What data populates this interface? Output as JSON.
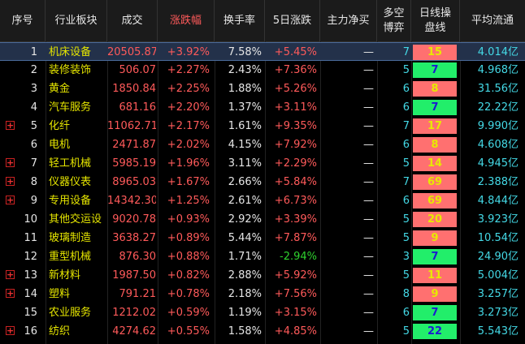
{
  "colors": {
    "red": "#ff5a5a",
    "yellow": "#e5e500",
    "green": "#2ed12e",
    "cyan": "#44d9e6",
    "white": "#e6e6e6",
    "badge_red": "#ff7070",
    "badge_green": "#22ee6a",
    "badge_red_text": "#e8e800",
    "badge_green_text": "#1b1bd0"
  },
  "header": {
    "seq": "序号",
    "industry": "行业板块",
    "price": "成交",
    "change": "涨跌幅",
    "turnover": "换手率",
    "change5d": "5日涨跌",
    "netflow": "主力净买",
    "bullbear_l1": "多空",
    "bullbear_l2": "博弈",
    "daily_l1": "日线操",
    "daily_l2": "盘线",
    "float_cap": "平均流通"
  },
  "rows": [
    {
      "seq": "1",
      "name": "机床设备",
      "price": "20505.87",
      "change": "+3.92%",
      "turnover": "7.58%",
      "change5d": "+5.45%",
      "change5d_color": "red",
      "netflow": "—",
      "bb": "7",
      "daily": "15",
      "daily_color": "red",
      "cap": "4.014亿",
      "expand": false
    },
    {
      "seq": "2",
      "name": "装修装饰",
      "price": "506.07",
      "change": "+2.27%",
      "turnover": "2.43%",
      "change5d": "+7.36%",
      "change5d_color": "red",
      "netflow": "—",
      "bb": "5",
      "daily": "7",
      "daily_color": "green",
      "cap": "4.968亿",
      "expand": false
    },
    {
      "seq": "3",
      "name": "黄金",
      "price": "1850.84",
      "change": "+2.25%",
      "turnover": "1.88%",
      "change5d": "+5.26%",
      "change5d_color": "red",
      "netflow": "—",
      "bb": "6",
      "daily": "8",
      "daily_color": "red",
      "cap": "31.56亿",
      "expand": false
    },
    {
      "seq": "4",
      "name": "汽车服务",
      "price": "681.16",
      "change": "+2.20%",
      "turnover": "1.37%",
      "change5d": "+3.11%",
      "change5d_color": "red",
      "netflow": "—",
      "bb": "6",
      "daily": "7",
      "daily_color": "green",
      "cap": "22.22亿",
      "expand": false
    },
    {
      "seq": "5",
      "name": "化纤",
      "price": "11062.71",
      "change": "+2.17%",
      "turnover": "1.61%",
      "change5d": "+9.35%",
      "change5d_color": "red",
      "netflow": "—",
      "bb": "7",
      "daily": "17",
      "daily_color": "red",
      "cap": "9.990亿",
      "expand": true
    },
    {
      "seq": "6",
      "name": "电机",
      "price": "2471.87",
      "change": "+2.02%",
      "turnover": "4.15%",
      "change5d": "+7.92%",
      "change5d_color": "red",
      "netflow": "—",
      "bb": "6",
      "daily": "8",
      "daily_color": "red",
      "cap": "4.608亿",
      "expand": false
    },
    {
      "seq": "7",
      "name": "轻工机械",
      "price": "5985.19",
      "change": "+1.96%",
      "turnover": "3.11%",
      "change5d": "+2.29%",
      "change5d_color": "red",
      "netflow": "—",
      "bb": "5",
      "daily": "14",
      "daily_color": "red",
      "cap": "4.945亿",
      "expand": true
    },
    {
      "seq": "8",
      "name": "仪器仪表",
      "price": "8965.03",
      "change": "+1.67%",
      "turnover": "2.66%",
      "change5d": "+5.84%",
      "change5d_color": "red",
      "netflow": "—",
      "bb": "7",
      "daily": "69",
      "daily_color": "red",
      "cap": "2.388亿",
      "expand": true
    },
    {
      "seq": "9",
      "name": "专用设备",
      "price": "14342.30",
      "change": "+1.25%",
      "turnover": "2.61%",
      "change5d": "+6.73%",
      "change5d_color": "red",
      "netflow": "—",
      "bb": "6",
      "daily": "69",
      "daily_color": "red",
      "cap": "4.844亿",
      "expand": true
    },
    {
      "seq": "10",
      "name": "其他交运设",
      "price": "9020.78",
      "change": "+0.93%",
      "turnover": "2.92%",
      "change5d": "+3.39%",
      "change5d_color": "red",
      "netflow": "—",
      "bb": "5",
      "daily": "20",
      "daily_color": "red",
      "cap": "3.923亿",
      "expand": false
    },
    {
      "seq": "11",
      "name": "玻璃制造",
      "price": "3638.27",
      "change": "+0.89%",
      "turnover": "5.44%",
      "change5d": "+7.87%",
      "change5d_color": "red",
      "netflow": "—",
      "bb": "5",
      "daily": "9",
      "daily_color": "red",
      "cap": "10.54亿",
      "expand": false
    },
    {
      "seq": "12",
      "name": "重型机械",
      "price": "876.30",
      "change": "+0.88%",
      "turnover": "1.71%",
      "change5d": "-2.94%",
      "change5d_color": "green",
      "netflow": "—",
      "bb": "3",
      "daily": "7",
      "daily_color": "green",
      "cap": "24.90亿",
      "expand": false
    },
    {
      "seq": "13",
      "name": "新材料",
      "price": "1987.50",
      "change": "+0.82%",
      "turnover": "2.88%",
      "change5d": "+5.92%",
      "change5d_color": "red",
      "netflow": "—",
      "bb": "5",
      "daily": "11",
      "daily_color": "red",
      "cap": "5.004亿",
      "expand": true
    },
    {
      "seq": "14",
      "name": "塑料",
      "price": "791.21",
      "change": "+0.78%",
      "turnover": "2.18%",
      "change5d": "+7.56%",
      "change5d_color": "red",
      "netflow": "—",
      "bb": "8",
      "daily": "9",
      "daily_color": "red",
      "cap": "3.257亿",
      "expand": true
    },
    {
      "seq": "15",
      "name": "农业服务",
      "price": "1212.02",
      "change": "+0.59%",
      "turnover": "1.19%",
      "change5d": "+3.15%",
      "change5d_color": "red",
      "netflow": "—",
      "bb": "6",
      "daily": "7",
      "daily_color": "green",
      "cap": "3.273亿",
      "expand": false
    },
    {
      "seq": "16",
      "name": "纺织",
      "price": "4274.62",
      "change": "+0.55%",
      "turnover": "1.58%",
      "change5d": "+4.85%",
      "change5d_color": "red",
      "netflow": "—",
      "bb": "5",
      "daily": "22",
      "daily_color": "green",
      "cap": "5.543亿",
      "expand": true
    }
  ]
}
